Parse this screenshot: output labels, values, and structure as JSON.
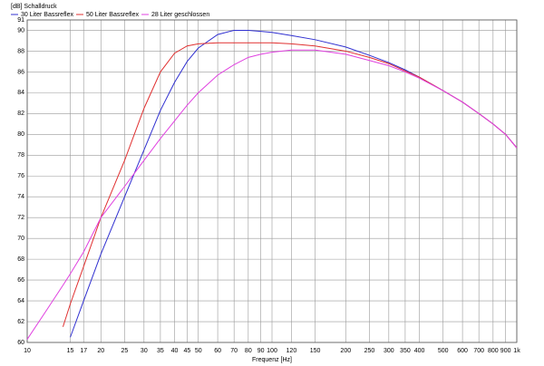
{
  "chart_data": {
    "type": "line",
    "y_label": "[dB] Schalldruck",
    "x_label": "Frequenz [Hz]",
    "log_x": true,
    "grid": true,
    "x": [
      10,
      12,
      14,
      15,
      17,
      20,
      25,
      30,
      35,
      40,
      45,
      50,
      60,
      70,
      80,
      90,
      100,
      120,
      150,
      200,
      250,
      300,
      350,
      400,
      500,
      600,
      700,
      800,
      900,
      1000
    ],
    "series": [
      {
        "name": "30 Liter Bassreflex",
        "color": "#3030d0",
        "values": [
          null,
          null,
          null,
          60.5,
          64,
          68.5,
          74,
          78.5,
          82.3,
          85,
          87,
          88.3,
          89.6,
          90,
          90,
          89.9,
          89.8,
          89.5,
          89.1,
          88.4,
          87.6,
          86.9,
          86.2,
          85.5,
          84.2,
          83.1,
          82,
          81,
          80,
          78.7
        ]
      },
      {
        "name": "50 Liter Bassreflex",
        "color": "#e03030",
        "values": [
          null,
          null,
          61.5,
          63.7,
          67.3,
          72,
          77.5,
          82.5,
          86,
          87.8,
          88.5,
          88.7,
          88.8,
          88.8,
          88.8,
          88.8,
          88.8,
          88.7,
          88.5,
          88,
          87.4,
          86.8,
          86.1,
          85.5,
          84.2,
          83.1,
          82,
          81,
          80,
          78.7
        ]
      },
      {
        "name": "28 Liter geschlossen",
        "color": "#e040e0",
        "values": [
          60.3,
          63.1,
          65.5,
          66.6,
          68.7,
          72,
          75,
          77.5,
          79.6,
          81.3,
          82.8,
          84,
          85.7,
          86.7,
          87.4,
          87.7,
          87.9,
          88.1,
          88.1,
          87.7,
          87.1,
          86.6,
          86,
          85.4,
          84.2,
          83.1,
          82,
          81,
          80,
          78.7
        ]
      }
    ],
    "xlim": [
      10,
      1000
    ],
    "xticks": [
      10,
      15,
      17,
      20,
      25,
      30,
      35,
      40,
      45,
      50,
      60,
      70,
      80,
      90,
      100,
      120,
      150,
      200,
      250,
      300,
      350,
      400,
      500,
      600,
      700,
      800,
      900,
      {
        "value": 1000,
        "label": "1k"
      }
    ],
    "ylim": [
      60,
      91
    ],
    "yticks": [
      60,
      62,
      64,
      66,
      68,
      70,
      72,
      74,
      76,
      78,
      80,
      82,
      84,
      86,
      88,
      90,
      91
    ]
  }
}
